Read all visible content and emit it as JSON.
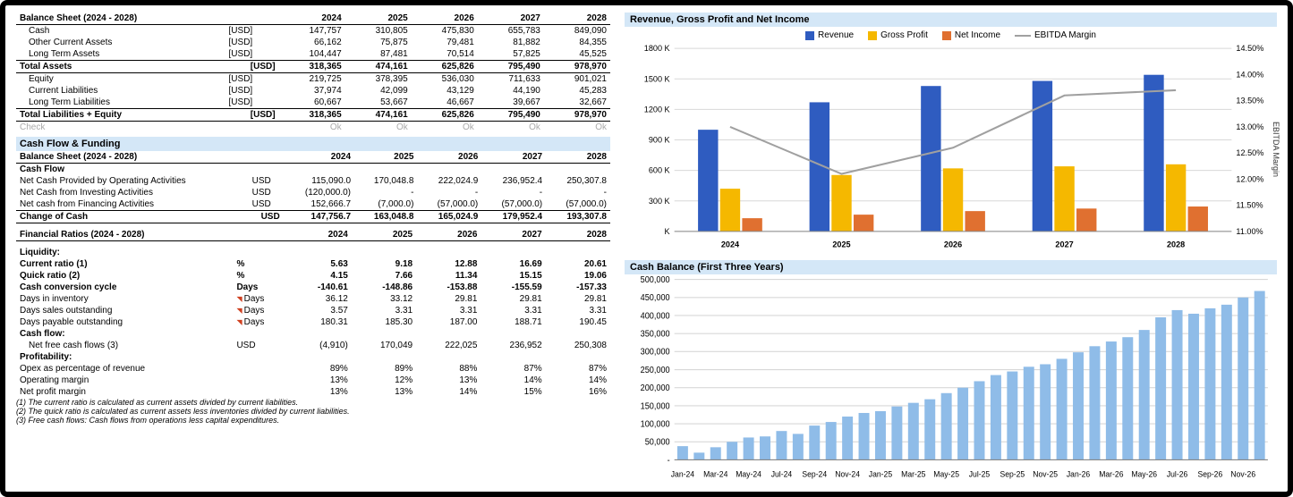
{
  "colors": {
    "header_bg": "#d4e7f7",
    "revenue": "#2f5cc0",
    "gross_profit": "#f5b800",
    "net_income": "#e07030",
    "ebitda_line": "#a0a0a0",
    "cash_bar": "#8fbce8",
    "grid": "#d8d8d8"
  },
  "bs": {
    "title": "Balance Sheet (2024 - 2028)",
    "years": [
      "2024",
      "2025",
      "2026",
      "2027",
      "2028"
    ],
    "rows": [
      {
        "label": "Cash",
        "unit": "[USD]",
        "v": [
          "147,757",
          "310,805",
          "475,830",
          "655,783",
          "849,090"
        ]
      },
      {
        "label": "Other Current Assets",
        "unit": "[USD]",
        "v": [
          "66,162",
          "75,875",
          "79,481",
          "81,882",
          "84,355"
        ]
      },
      {
        "label": "Long Term Assets",
        "unit": "[USD]",
        "v": [
          "104,447",
          "87,481",
          "70,514",
          "57,825",
          "45,525"
        ]
      }
    ],
    "total_assets": {
      "label": "Total Assets",
      "unit": "[USD]",
      "v": [
        "318,365",
        "474,161",
        "625,826",
        "795,490",
        "978,970"
      ]
    },
    "rows2": [
      {
        "label": "Equity",
        "unit": "[USD]",
        "v": [
          "219,725",
          "378,395",
          "536,030",
          "711,633",
          "901,021"
        ]
      },
      {
        "label": "Current Liabilities",
        "unit": "[USD]",
        "v": [
          "37,974",
          "42,099",
          "43,129",
          "44,190",
          "45,283"
        ]
      },
      {
        "label": "Long Term Liabilities",
        "unit": "[USD]",
        "v": [
          "60,667",
          "53,667",
          "46,667",
          "39,667",
          "32,667"
        ]
      }
    ],
    "total_le": {
      "label": "Total Liabilities + Equity",
      "unit": "[USD]",
      "v": [
        "318,365",
        "474,161",
        "625,826",
        "795,490",
        "978,970"
      ]
    },
    "check": {
      "label": "Check",
      "v": [
        "Ok",
        "Ok",
        "Ok",
        "Ok",
        "Ok"
      ]
    }
  },
  "cf_head": "Cash Flow & Funding",
  "cf": {
    "title": "Balance Sheet (2024 - 2028)",
    "years": [
      "2024",
      "2025",
      "2026",
      "2027",
      "2028"
    ],
    "sub": "Cash Flow",
    "rows": [
      {
        "label": "Net Cash Provided by Operating Activities",
        "unit": "USD",
        "v": [
          "115,090.0",
          "170,048.8",
          "222,024.9",
          "236,952.4",
          "250,307.8"
        ]
      },
      {
        "label": "Net Cash from Investing Activities",
        "unit": "USD",
        "v": [
          "(120,000.0)",
          "-",
          "-",
          "-",
          "-"
        ]
      },
      {
        "label": "Net cash from Financing Activities",
        "unit": "USD",
        "v": [
          "152,666.7",
          "(7,000.0)",
          "(57,000.0)",
          "(57,000.0)",
          "(57,000.0)"
        ]
      }
    ],
    "total": {
      "label": "Change of Cash",
      "unit": "USD",
      "v": [
        "147,756.7",
        "163,048.8",
        "165,024.9",
        "179,952.4",
        "193,307.8"
      ]
    }
  },
  "ratios": {
    "title": "Financial Ratios (2024 - 2028)",
    "years": [
      "2024",
      "2025",
      "2026",
      "2027",
      "2028"
    ],
    "liq_label": "Liquidity:",
    "liq": [
      {
        "label": "Current ratio (1)",
        "unit": "%",
        "bold": true,
        "v": [
          "5.63",
          "9.18",
          "12.88",
          "16.69",
          "20.61"
        ]
      },
      {
        "label": "Quick ratio (2)",
        "unit": "%",
        "bold": true,
        "v": [
          "4.15",
          "7.66",
          "11.34",
          "15.15",
          "19.06"
        ]
      },
      {
        "label": "Cash conversion cycle",
        "unit": "Days",
        "bold": true,
        "v": [
          "-140.61",
          "-148.86",
          "-153.88",
          "-155.59",
          "-157.33"
        ]
      },
      {
        "label": "Days in inventory",
        "unit": "Days",
        "flag": true,
        "v": [
          "36.12",
          "33.12",
          "29.81",
          "29.81",
          "29.81"
        ]
      },
      {
        "label": "Days sales outstanding",
        "unit": "Days",
        "flag": true,
        "v": [
          "3.57",
          "3.31",
          "3.31",
          "3.31",
          "3.31"
        ]
      },
      {
        "label": "Days payable outstanding",
        "unit": "Days",
        "flag": true,
        "v": [
          "180.31",
          "185.30",
          "187.00",
          "188.71",
          "190.45"
        ]
      }
    ],
    "cf_label": "Cash flow:",
    "cfrow": {
      "label": "Net free cash flows (3)",
      "unit": "USD",
      "v": [
        "(4,910)",
        "170,049",
        "222,025",
        "236,952",
        "250,308"
      ]
    },
    "prof_label": "Profitability:",
    "prof": [
      {
        "label": "Opex as percentage of revenue",
        "v": [
          "89%",
          "89%",
          "88%",
          "87%",
          "87%"
        ]
      },
      {
        "label": "Operating margin",
        "v": [
          "13%",
          "12%",
          "13%",
          "14%",
          "14%"
        ]
      },
      {
        "label": "Net profit margin",
        "v": [
          "13%",
          "13%",
          "14%",
          "15%",
          "16%"
        ]
      }
    ],
    "notes": [
      "(1) The current ratio is calculated as current assets divided by current liabilities.",
      "(2) The quick ratio is calculated as current assets less inventories divided by current liabilities.",
      "(3) Free cash flows: Cash flows from operations less capital expenditures."
    ]
  },
  "chart1": {
    "title": "Revenue, Gross Profit and Net Income",
    "legend": [
      "Revenue",
      "Gross Profit",
      "Net Income",
      "EBITDA Margin"
    ],
    "years": [
      "2024",
      "2025",
      "2026",
      "2027",
      "2028"
    ],
    "y_ticks": [
      "K",
      "300 K",
      "600 K",
      "900 K",
      "1200 K",
      "1500 K",
      "1800 K"
    ],
    "y_max": 1800,
    "y2_ticks": [
      "11.00%",
      "11.50%",
      "12.00%",
      "12.50%",
      "13.00%",
      "13.50%",
      "14.00%",
      "14.50%"
    ],
    "y2_label": "EBITDA Margin",
    "y2_min": 11.0,
    "y2_max": 14.5,
    "revenue": [
      1000,
      1270,
      1430,
      1480,
      1540
    ],
    "gross": [
      420,
      555,
      620,
      640,
      660
    ],
    "net": [
      130,
      165,
      200,
      225,
      245
    ],
    "ebitda": [
      13.0,
      12.1,
      12.6,
      13.6,
      13.7
    ]
  },
  "chart2": {
    "title": "Cash Balance (First Three Years)",
    "y_ticks": [
      "-",
      "50,000",
      "100,000",
      "150,000",
      "200,000",
      "250,000",
      "300,000",
      "350,000",
      "400,000",
      "450,000",
      "500,000"
    ],
    "y_max": 500000,
    "x_labels": [
      "Jan-24",
      "Mar-24",
      "May-24",
      "Jul-24",
      "Sep-24",
      "Nov-24",
      "Jan-25",
      "Mar-25",
      "May-25",
      "Jul-25",
      "Sep-25",
      "Nov-25",
      "Jan-26",
      "Mar-26",
      "May-26",
      "Jul-26",
      "Sep-26",
      "Nov-26"
    ],
    "values": [
      38000,
      20000,
      35000,
      50000,
      62000,
      65000,
      80000,
      72000,
      95000,
      105000,
      120000,
      130000,
      135000,
      148000,
      158000,
      168000,
      185000,
      200000,
      218000,
      235000,
      245000,
      258000,
      265000,
      280000,
      298000,
      315000,
      328000,
      340000,
      360000,
      395000,
      415000,
      405000,
      420000,
      430000,
      450000,
      468000
    ]
  }
}
